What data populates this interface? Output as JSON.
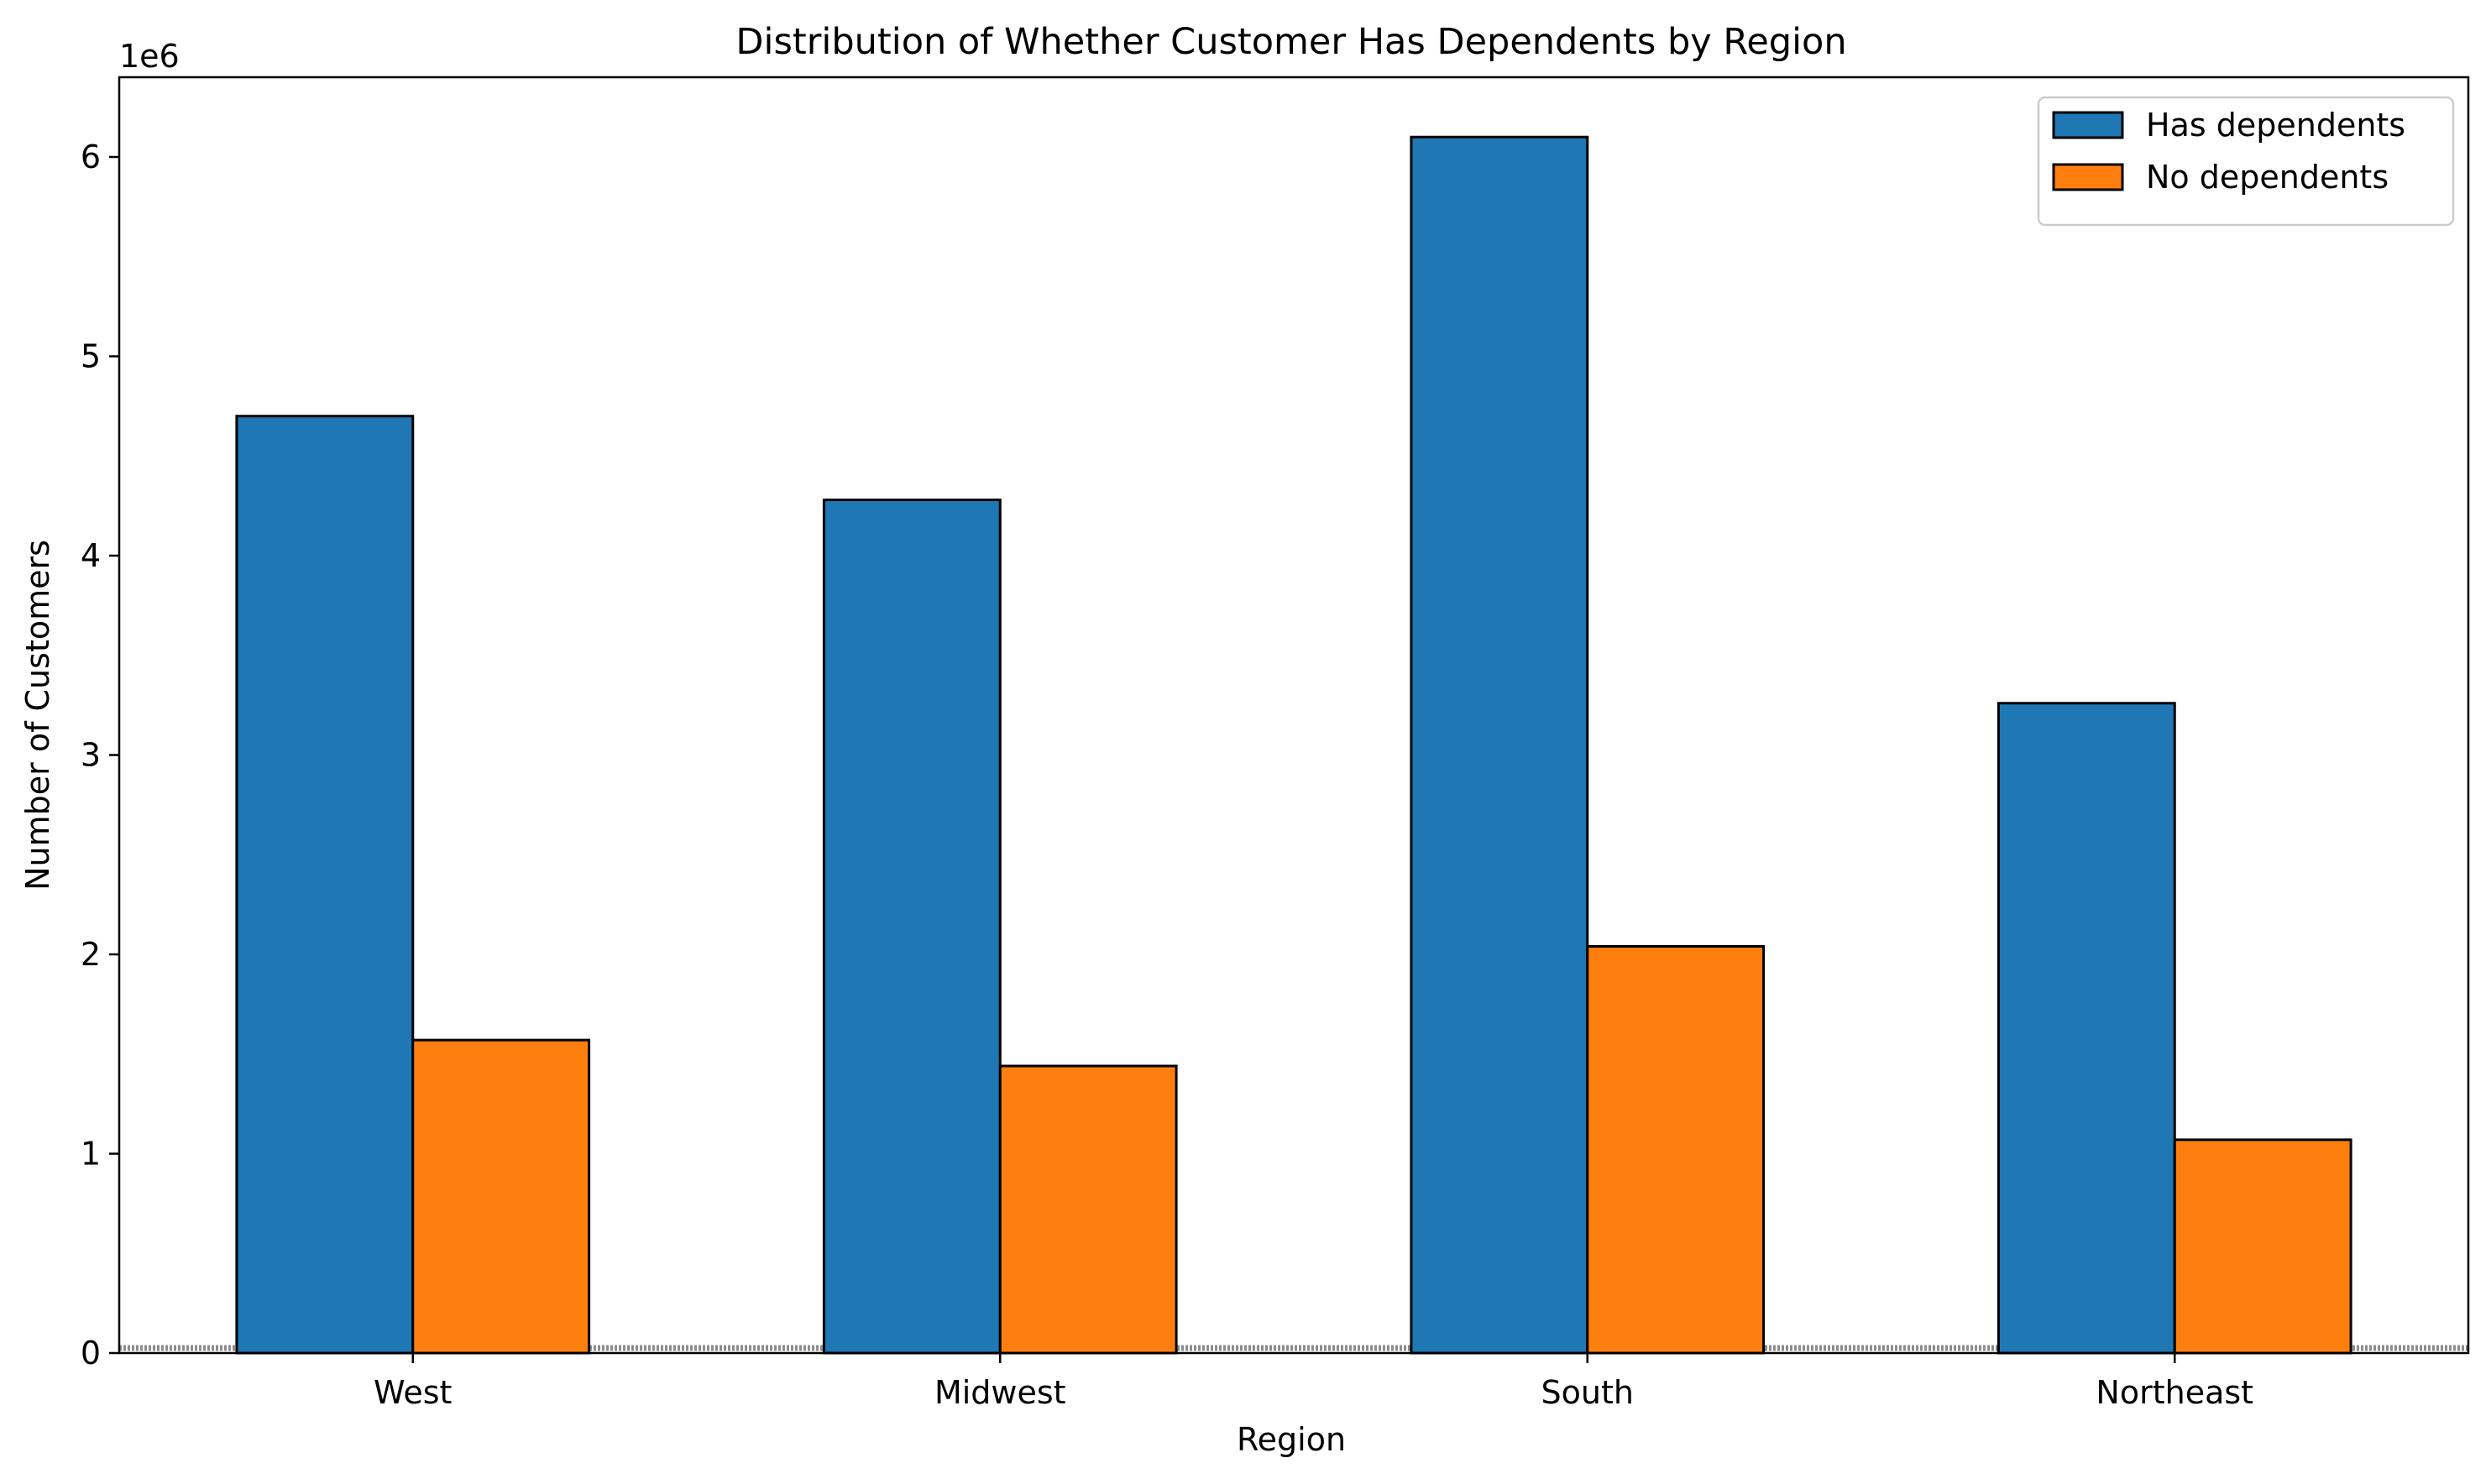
{
  "chart_data": {
    "type": "bar",
    "title": "Distribution of Whether Customer Has Dependents by Region",
    "xlabel": "Region",
    "ylabel": "Number of Customers",
    "y_offset_label": "1e6",
    "categories": [
      "West",
      "Midwest",
      "South",
      "Northeast"
    ],
    "series": [
      {
        "name": "Has dependents",
        "color": "#1f77b4",
        "values": [
          4700000,
          4280000,
          6100000,
          3260000
        ]
      },
      {
        "name": "No dependents",
        "color": "#ff7f0e",
        "values": [
          1570000,
          1440000,
          2040000,
          1070000
        ]
      }
    ],
    "ylim": [
      0,
      6400000
    ],
    "yticks": [
      0,
      1000000,
      2000000,
      3000000,
      4000000,
      5000000,
      6000000
    ],
    "ytick_labels": [
      "0",
      "1",
      "2",
      "3",
      "4",
      "5",
      "6"
    ],
    "grid": false,
    "legend_position": "top-right",
    "baseline_style": "dotted gray"
  }
}
